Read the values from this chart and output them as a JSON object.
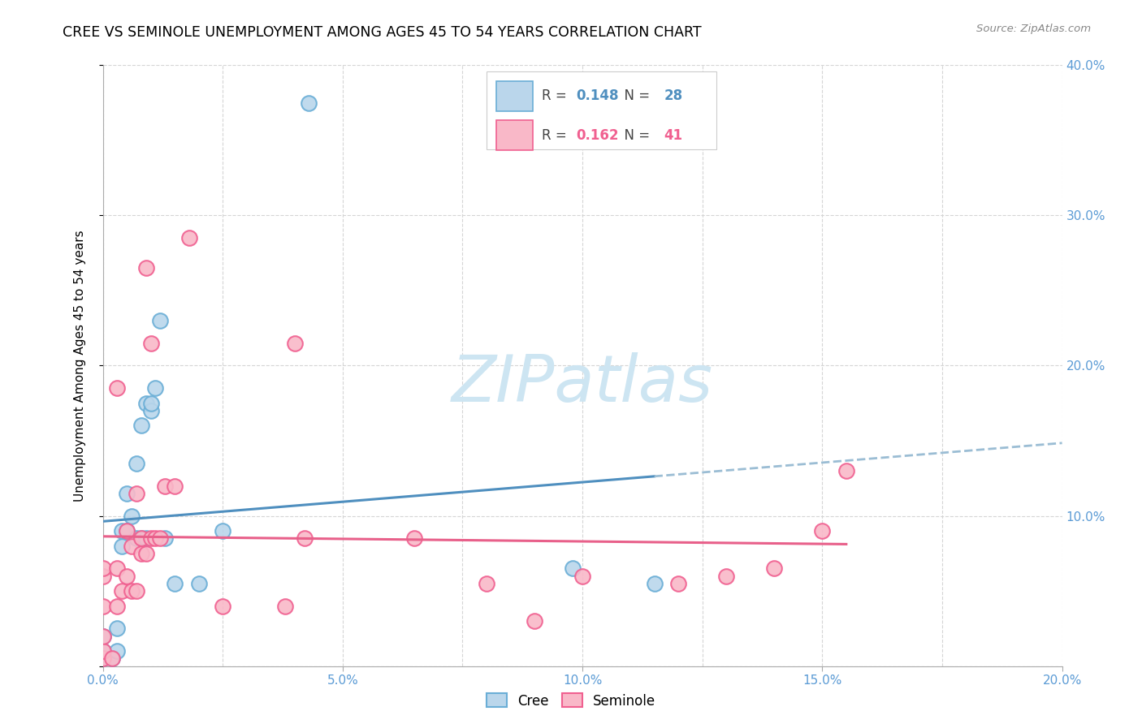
{
  "title": "CREE VS SEMINOLE UNEMPLOYMENT AMONG AGES 45 TO 54 YEARS CORRELATION CHART",
  "source": "Source: ZipAtlas.com",
  "ylabel": "Unemployment Among Ages 45 to 54 years",
  "xlim": [
    0.0,
    0.2
  ],
  "ylim": [
    0.0,
    0.4
  ],
  "xticks": [
    0.0,
    0.05,
    0.1,
    0.15,
    0.2
  ],
  "xticklabels": [
    "0.0%",
    "5.0%",
    "10.0%",
    "15.0%",
    "20.0%"
  ],
  "yticks": [
    0.0,
    0.1,
    0.2,
    0.3,
    0.4
  ],
  "yticklabels_right": [
    "",
    "10.0%",
    "20.0%",
    "30.0%",
    "40.0%"
  ],
  "cree_fill_color": "#bad6eb",
  "seminole_fill_color": "#f9b8c8",
  "cree_edge_color": "#6aaed6",
  "seminole_edge_color": "#f06090",
  "cree_line_color": "#4f8fbf",
  "seminole_line_color": "#e8608a",
  "cree_dash_color": "#9bbdd4",
  "grid_color": "#d5d5d5",
  "watermark_color": "#cde5f2",
  "cree_R": 0.148,
  "cree_N": 28,
  "seminole_R": 0.162,
  "seminole_N": 41,
  "cree_x": [
    0.0,
    0.0,
    0.0,
    0.002,
    0.003,
    0.003,
    0.004,
    0.004,
    0.005,
    0.005,
    0.006,
    0.007,
    0.007,
    0.008,
    0.008,
    0.009,
    0.009,
    0.01,
    0.01,
    0.011,
    0.012,
    0.013,
    0.015,
    0.02,
    0.025,
    0.043,
    0.098,
    0.115
  ],
  "cree_y": [
    0.005,
    0.01,
    0.02,
    0.005,
    0.01,
    0.025,
    0.08,
    0.09,
    0.09,
    0.115,
    0.1,
    0.085,
    0.135,
    0.085,
    0.16,
    0.085,
    0.175,
    0.17,
    0.175,
    0.185,
    0.23,
    0.085,
    0.055,
    0.055,
    0.09,
    0.375,
    0.065,
    0.055
  ],
  "seminole_x": [
    0.0,
    0.0,
    0.0,
    0.0,
    0.0,
    0.0,
    0.002,
    0.003,
    0.003,
    0.003,
    0.004,
    0.005,
    0.005,
    0.006,
    0.006,
    0.007,
    0.007,
    0.008,
    0.008,
    0.009,
    0.009,
    0.01,
    0.01,
    0.011,
    0.012,
    0.013,
    0.015,
    0.018,
    0.025,
    0.038,
    0.04,
    0.042,
    0.065,
    0.08,
    0.09,
    0.1,
    0.12,
    0.13,
    0.14,
    0.15,
    0.155
  ],
  "seminole_y": [
    0.005,
    0.01,
    0.02,
    0.04,
    0.06,
    0.065,
    0.005,
    0.04,
    0.065,
    0.185,
    0.05,
    0.06,
    0.09,
    0.05,
    0.08,
    0.05,
    0.115,
    0.075,
    0.085,
    0.075,
    0.265,
    0.085,
    0.215,
    0.085,
    0.085,
    0.12,
    0.12,
    0.285,
    0.04,
    0.04,
    0.215,
    0.085,
    0.085,
    0.055,
    0.03,
    0.06,
    0.055,
    0.06,
    0.065,
    0.09,
    0.13
  ]
}
